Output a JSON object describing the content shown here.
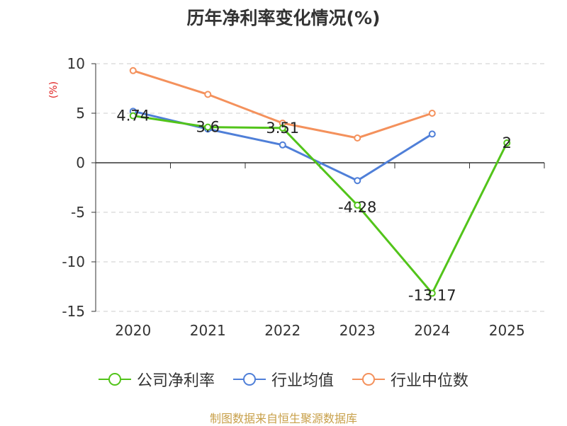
{
  "chart_data": {
    "type": "line",
    "title": "历年净利率变化情况(%)",
    "ylabel": "(%)",
    "categories": [
      "2020",
      "2021",
      "2022",
      "2023",
      "2024",
      "2025"
    ],
    "ylim": [
      -15,
      10
    ],
    "yticks": [
      10,
      5,
      0,
      -5,
      -10,
      -15
    ],
    "grid": true,
    "legend_position": "bottom",
    "series": [
      {
        "name": "公司净利率",
        "color": "#52c41a",
        "values": [
          4.74,
          3.6,
          3.51,
          -4.28,
          -13.17,
          2
        ],
        "labels": [
          "4.74",
          "3.6",
          "3.51",
          "-4.28",
          "-13.17",
          "2"
        ]
      },
      {
        "name": "行业均值",
        "color": "#4f7fd8",
        "values": [
          5.2,
          3.4,
          1.8,
          -1.8,
          2.9,
          null
        ]
      },
      {
        "name": "行业中位数",
        "color": "#f4915c",
        "values": [
          9.3,
          6.9,
          4.0,
          2.5,
          5.0,
          null
        ]
      }
    ]
  },
  "footer": {
    "source": "制图数据来自恒生聚源数据库"
  }
}
